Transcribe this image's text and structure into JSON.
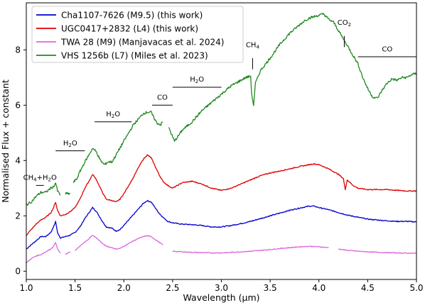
{
  "chart_data": {
    "type": "line",
    "xlabel": "Wavelength (µm)",
    "ylabel": "Normalised Flux + constant",
    "xlim": [
      1.0,
      5.0
    ],
    "ylim": [
      -0.3,
      9.7
    ],
    "xticks": [
      1.0,
      1.5,
      2.0,
      2.5,
      3.0,
      3.5,
      4.0,
      4.5,
      5.0
    ],
    "xtick_labels": [
      "1.0",
      "1.5",
      "2.0",
      "2.5",
      "3.0",
      "3.5",
      "4.0",
      "4.5",
      "5.0"
    ],
    "yticks": [
      0,
      2,
      4,
      6,
      8
    ],
    "ytick_labels": [
      "0",
      "2",
      "4",
      "6",
      "8"
    ],
    "grid": false,
    "legend_position": "top-left",
    "series": [
      {
        "name": "Cha1107-7626 (M9.5) (this work)",
        "color": "#0000cc",
        "points": [
          [
            1.0,
            0.8
          ],
          [
            1.05,
            0.95
          ],
          [
            1.1,
            1.1
          ],
          [
            1.15,
            1.25
          ],
          [
            1.2,
            1.25
          ],
          [
            1.25,
            1.4
          ],
          [
            1.28,
            1.6
          ],
          [
            1.3,
            1.8
          ],
          [
            1.32,
            1.4
          ],
          [
            1.35,
            1.2
          ],
          [
            1.4,
            1.25
          ],
          [
            1.45,
            1.3
          ],
          [
            1.5,
            1.4
          ],
          [
            1.55,
            1.6
          ],
          [
            1.6,
            1.9
          ],
          [
            1.65,
            2.15
          ],
          [
            1.68,
            2.3
          ],
          [
            1.72,
            2.15
          ],
          [
            1.78,
            1.8
          ],
          [
            1.82,
            1.6
          ],
          [
            1.88,
            1.55
          ],
          [
            1.92,
            1.45
          ],
          [
            1.96,
            1.5
          ],
          [
            2.0,
            1.65
          ],
          [
            2.05,
            1.85
          ],
          [
            2.1,
            2.05
          ],
          [
            2.15,
            2.25
          ],
          [
            2.2,
            2.45
          ],
          [
            2.24,
            2.55
          ],
          [
            2.28,
            2.5
          ],
          [
            2.32,
            2.3
          ],
          [
            2.36,
            2.1
          ],
          [
            2.4,
            1.95
          ],
          [
            2.45,
            1.8
          ],
          [
            2.5,
            1.75
          ],
          [
            2.55,
            1.72
          ],
          [
            2.6,
            1.7
          ],
          [
            2.7,
            1.68
          ],
          [
            2.8,
            1.65
          ],
          [
            2.9,
            1.6
          ],
          [
            3.0,
            1.6
          ],
          [
            3.1,
            1.65
          ],
          [
            3.2,
            1.72
          ],
          [
            3.3,
            1.8
          ],
          [
            3.4,
            1.9
          ],
          [
            3.5,
            2.0
          ],
          [
            3.6,
            2.1
          ],
          [
            3.7,
            2.2
          ],
          [
            3.8,
            2.28
          ],
          [
            3.9,
            2.35
          ],
          [
            3.95,
            2.35
          ],
          [
            4.0,
            2.3
          ],
          [
            4.1,
            2.22
          ],
          [
            4.2,
            2.12
          ],
          [
            4.3,
            2.02
          ],
          [
            4.4,
            1.95
          ],
          [
            4.5,
            1.88
          ],
          [
            4.6,
            1.85
          ],
          [
            4.7,
            1.82
          ],
          [
            4.8,
            1.8
          ],
          [
            4.9,
            1.8
          ],
          [
            5.0,
            1.78
          ]
        ]
      },
      {
        "name": "UGC0417+2832 (L4) (this work)",
        "color": "#dd0000",
        "points": [
          [
            1.0,
            1.3
          ],
          [
            1.05,
            1.5
          ],
          [
            1.1,
            1.7
          ],
          [
            1.15,
            1.85
          ],
          [
            1.2,
            1.95
          ],
          [
            1.25,
            2.1
          ],
          [
            1.28,
            2.3
          ],
          [
            1.3,
            2.5
          ],
          [
            1.32,
            2.2
          ],
          [
            1.35,
            2.0
          ],
          [
            1.4,
            2.05
          ],
          [
            1.45,
            2.15
          ],
          [
            1.5,
            2.3
          ],
          [
            1.55,
            2.6
          ],
          [
            1.6,
            3.0
          ],
          [
            1.65,
            3.3
          ],
          [
            1.68,
            3.5
          ],
          [
            1.72,
            3.3
          ],
          [
            1.78,
            2.85
          ],
          [
            1.82,
            2.6
          ],
          [
            1.88,
            2.55
          ],
          [
            1.92,
            2.5
          ],
          [
            1.96,
            2.6
          ],
          [
            2.0,
            2.8
          ],
          [
            2.05,
            3.1
          ],
          [
            2.1,
            3.4
          ],
          [
            2.15,
            3.75
          ],
          [
            2.2,
            4.05
          ],
          [
            2.24,
            4.2
          ],
          [
            2.28,
            4.1
          ],
          [
            2.32,
            3.8
          ],
          [
            2.36,
            3.5
          ],
          [
            2.4,
            3.25
          ],
          [
            2.45,
            3.1
          ],
          [
            2.5,
            3.0
          ],
          [
            2.55,
            3.1
          ],
          [
            2.6,
            3.2
          ],
          [
            2.7,
            3.25
          ],
          [
            2.8,
            3.15
          ],
          [
            2.9,
            3.0
          ],
          [
            3.0,
            2.92
          ],
          [
            3.1,
            3.0
          ],
          [
            3.2,
            3.15
          ],
          [
            3.3,
            3.3
          ],
          [
            3.4,
            3.45
          ],
          [
            3.5,
            3.55
          ],
          [
            3.6,
            3.62
          ],
          [
            3.7,
            3.7
          ],
          [
            3.8,
            3.78
          ],
          [
            3.9,
            3.85
          ],
          [
            3.95,
            3.88
          ],
          [
            4.0,
            3.85
          ],
          [
            4.1,
            3.7
          ],
          [
            4.2,
            3.5
          ],
          [
            4.25,
            3.35
          ],
          [
            4.27,
            2.95
          ],
          [
            4.29,
            3.3
          ],
          [
            4.35,
            3.1
          ],
          [
            4.4,
            3.0
          ],
          [
            4.5,
            2.95
          ],
          [
            4.6,
            2.95
          ],
          [
            4.7,
            2.95
          ],
          [
            4.8,
            2.92
          ],
          [
            4.9,
            2.9
          ],
          [
            5.0,
            2.9
          ]
        ]
      },
      {
        "name": "TWA 28 (M9) (Manjavacas et al. 2024)",
        "color": "#dd66dd",
        "segments": [
          [
            [
              1.0,
              0.3
            ],
            [
              1.05,
              0.45
            ],
            [
              1.1,
              0.55
            ],
            [
              1.15,
              0.6
            ],
            [
              1.2,
              0.7
            ],
            [
              1.25,
              0.8
            ],
            [
              1.28,
              0.9
            ],
            [
              1.3,
              1.05
            ],
            [
              1.32,
              0.8
            ],
            [
              1.35,
              0.65
            ]
          ],
          [
            [
              1.4,
              0.6
            ],
            [
              1.45,
              0.7
            ]
          ],
          [
            [
              1.5,
              0.75
            ],
            [
              1.55,
              0.9
            ],
            [
              1.6,
              1.05
            ],
            [
              1.65,
              1.2
            ],
            [
              1.68,
              1.3
            ],
            [
              1.72,
              1.2
            ],
            [
              1.78,
              1.0
            ],
            [
              1.82,
              0.9
            ],
            [
              1.88,
              0.85
            ],
            [
              1.92,
              0.8
            ],
            [
              1.96,
              0.82
            ],
            [
              2.0,
              0.9
            ],
            [
              2.05,
              1.0
            ],
            [
              2.1,
              1.1
            ],
            [
              2.15,
              1.18
            ],
            [
              2.2,
              1.25
            ],
            [
              2.24,
              1.28
            ],
            [
              2.28,
              1.25
            ],
            [
              2.32,
              1.15
            ],
            [
              2.36,
              1.05
            ],
            [
              2.4,
              0.95
            ]
          ],
          [
            [
              2.5,
              0.72
            ],
            [
              2.6,
              0.7
            ],
            [
              2.7,
              0.68
            ],
            [
              2.8,
              0.67
            ],
            [
              2.9,
              0.66
            ],
            [
              3.0,
              0.66
            ],
            [
              3.1,
              0.68
            ],
            [
              3.2,
              0.7
            ],
            [
              3.3,
              0.72
            ],
            [
              3.4,
              0.75
            ],
            [
              3.5,
              0.78
            ],
            [
              3.6,
              0.82
            ],
            [
              3.7,
              0.85
            ],
            [
              3.8,
              0.88
            ],
            [
              3.9,
              0.9
            ],
            [
              4.0,
              0.88
            ],
            [
              4.1,
              0.85
            ]
          ],
          [
            [
              4.2,
              0.8
            ],
            [
              4.3,
              0.75
            ],
            [
              4.4,
              0.72
            ],
            [
              4.5,
              0.7
            ],
            [
              4.6,
              0.68
            ],
            [
              4.7,
              0.67
            ],
            [
              4.8,
              0.66
            ],
            [
              4.9,
              0.65
            ],
            [
              5.0,
              0.65
            ]
          ]
        ]
      },
      {
        "name": "VHS 1256b (L7) (Miles et al. 2023)",
        "color": "#228822",
        "segments": [
          [
            [
              1.0,
              2.4
            ],
            [
              1.05,
              2.5
            ],
            [
              1.1,
              2.7
            ],
            [
              1.15,
              2.85
            ],
            [
              1.2,
              2.85
            ],
            [
              1.25,
              3.0
            ],
            [
              1.28,
              3.05
            ],
            [
              1.3,
              3.2
            ],
            [
              1.32,
              2.9
            ],
            [
              1.35,
              2.75
            ]
          ],
          [
            [
              1.4,
              2.8
            ],
            [
              1.45,
              2.8
            ]
          ],
          [
            [
              1.48,
              3.2
            ],
            [
              1.52,
              3.35
            ],
            [
              1.55,
              3.6
            ],
            [
              1.6,
              3.95
            ],
            [
              1.65,
              4.25
            ],
            [
              1.68,
              4.45
            ],
            [
              1.72,
              4.3
            ],
            [
              1.76,
              4.0
            ],
            [
              1.8,
              3.85
            ],
            [
              1.84,
              3.95
            ],
            [
              1.88,
              3.95
            ],
            [
              1.92,
              4.2
            ],
            [
              1.96,
              4.45
            ],
            [
              2.0,
              4.7
            ],
            [
              2.05,
              5.0
            ],
            [
              2.1,
              5.3
            ],
            [
              2.15,
              5.5
            ],
            [
              2.2,
              5.7
            ],
            [
              2.24,
              5.75
            ],
            [
              2.28,
              5.75
            ],
            [
              2.3,
              5.6
            ],
            [
              2.34,
              5.35
            ],
            [
              2.38,
              5.3
            ],
            [
              2.4,
              5.4
            ]
          ],
          [
            [
              2.46,
              5.2
            ],
            [
              2.5,
              4.85
            ],
            [
              2.52,
              4.7
            ],
            [
              2.56,
              4.9
            ],
            [
              2.6,
              5.1
            ],
            [
              2.7,
              5.4
            ],
            [
              2.8,
              5.8
            ],
            [
              2.9,
              6.1
            ],
            [
              3.0,
              6.4
            ],
            [
              3.1,
              6.7
            ],
            [
              3.2,
              6.9
            ],
            [
              3.25,
              7.0
            ],
            [
              3.3,
              7.05
            ],
            [
              3.31,
              6.4
            ],
            [
              3.33,
              6.0
            ],
            [
              3.35,
              6.8
            ],
            [
              3.4,
              7.25
            ],
            [
              3.5,
              7.7
            ],
            [
              3.6,
              8.2
            ],
            [
              3.7,
              8.6
            ],
            [
              3.8,
              8.9
            ],
            [
              3.85,
              9.05
            ],
            [
              3.9,
              9.15
            ],
            [
              3.95,
              9.2
            ],
            [
              4.0,
              9.25
            ],
            [
              4.05,
              9.3
            ],
            [
              4.1,
              9.1
            ],
            [
              4.15,
              9.0
            ],
            [
              4.2,
              8.7
            ],
            [
              4.25,
              8.4
            ],
            [
              4.3,
              8.1
            ],
            [
              4.35,
              7.8
            ],
            [
              4.4,
              7.5
            ],
            [
              4.45,
              7.0
            ],
            [
              4.5,
              6.6
            ],
            [
              4.55,
              6.3
            ],
            [
              4.6,
              6.25
            ],
            [
              4.65,
              6.55
            ],
            [
              4.7,
              6.8
            ],
            [
              4.75,
              6.95
            ],
            [
              4.8,
              6.9
            ],
            [
              4.85,
              7.0
            ],
            [
              4.9,
              7.0
            ],
            [
              4.95,
              7.1
            ],
            [
              5.0,
              7.15
            ]
          ]
        ]
      }
    ],
    "annotations": [
      {
        "id": "ch4-h2o",
        "label_main": "CH",
        "label_sub1": "4",
        "label_rest": "+H",
        "label_sub2": "2",
        "label_end": "O",
        "x1": 1.1,
        "x2": 1.18,
        "y_line": 3.1,
        "y_text": 3.3
      },
      {
        "id": "h2o-1",
        "label_main": "H",
        "label_sub1": "2",
        "label_rest": "O",
        "x1": 1.3,
        "x2": 1.6,
        "y_line": 4.35,
        "y_text": 4.55
      },
      {
        "id": "h2o-2",
        "label_main": "H",
        "label_sub1": "2",
        "label_rest": "O",
        "x1": 1.7,
        "x2": 2.08,
        "y_line": 5.4,
        "y_text": 5.6
      },
      {
        "id": "co-1",
        "label_main": "CO",
        "x1": 2.29,
        "x2": 2.5,
        "y_line": 6.0,
        "y_text": 6.2
      },
      {
        "id": "h2o-3",
        "label_main": "H",
        "label_sub1": "2",
        "label_rest": "O",
        "x1": 2.5,
        "x2": 3.0,
        "y_line": 6.65,
        "y_text": 6.85
      },
      {
        "id": "ch4",
        "label_main": "CH",
        "label_sub1": "4",
        "x_tick": 3.32,
        "y_tick_top": 7.7,
        "y_tick_bottom": 7.3,
        "y_text": 8.1
      },
      {
        "id": "co2",
        "label_main": "CO",
        "label_sub1": "2",
        "x_tick": 4.26,
        "y_tick_top": 8.5,
        "y_tick_bottom": 8.1,
        "y_text": 8.9
      },
      {
        "id": "co-2",
        "label_main": "CO",
        "x1": 4.4,
        "x2": 5.0,
        "y_line": 7.75,
        "y_text": 7.95
      }
    ]
  }
}
